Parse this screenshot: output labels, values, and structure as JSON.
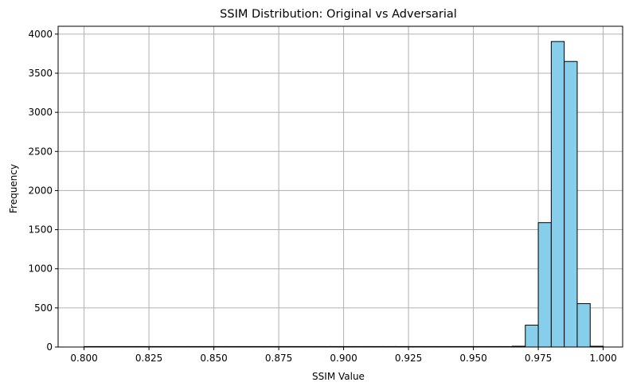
{
  "chart_data": {
    "type": "bar",
    "title": "SSIM Distribution: Original vs Adversarial",
    "xlabel": "SSIM Value",
    "ylabel": "Frequency",
    "xlim": [
      0.79,
      1.0075
    ],
    "ylim": [
      0,
      4100
    ],
    "grid": true,
    "bar_color": "#87CEEB",
    "edge_color": "#000000",
    "grid_color": "#b0b0b0",
    "x_ticks": [
      0.8,
      0.825,
      0.85,
      0.875,
      0.9,
      0.925,
      0.95,
      0.975,
      1.0
    ],
    "x_tick_labels": [
      "0.800",
      "0.825",
      "0.850",
      "0.875",
      "0.900",
      "0.925",
      "0.950",
      "0.975",
      "1.000"
    ],
    "y_ticks": [
      0,
      500,
      1000,
      1500,
      2000,
      2500,
      3000,
      3500,
      4000
    ],
    "y_tick_labels": [
      "0",
      "500",
      "1000",
      "1500",
      "2000",
      "2500",
      "3000",
      "3500",
      "4000"
    ],
    "bins": [
      {
        "x0": 0.8,
        "x1": 0.805,
        "value": 0
      },
      {
        "x0": 0.805,
        "x1": 0.81,
        "value": 0
      },
      {
        "x0": 0.81,
        "x1": 0.815,
        "value": 0
      },
      {
        "x0": 0.815,
        "x1": 0.82,
        "value": 0
      },
      {
        "x0": 0.82,
        "x1": 0.825,
        "value": 0
      },
      {
        "x0": 0.825,
        "x1": 0.83,
        "value": 0
      },
      {
        "x0": 0.83,
        "x1": 0.835,
        "value": 0
      },
      {
        "x0": 0.835,
        "x1": 0.84,
        "value": 0
      },
      {
        "x0": 0.84,
        "x1": 0.845,
        "value": 0
      },
      {
        "x0": 0.845,
        "x1": 0.85,
        "value": 0
      },
      {
        "x0": 0.85,
        "x1": 0.855,
        "value": 0
      },
      {
        "x0": 0.855,
        "x1": 0.86,
        "value": 0
      },
      {
        "x0": 0.86,
        "x1": 0.865,
        "value": 0
      },
      {
        "x0": 0.865,
        "x1": 0.87,
        "value": 0
      },
      {
        "x0": 0.87,
        "x1": 0.875,
        "value": 0
      },
      {
        "x0": 0.875,
        "x1": 0.88,
        "value": 0
      },
      {
        "x0": 0.88,
        "x1": 0.885,
        "value": 0
      },
      {
        "x0": 0.885,
        "x1": 0.89,
        "value": 0
      },
      {
        "x0": 0.89,
        "x1": 0.895,
        "value": 0
      },
      {
        "x0": 0.895,
        "x1": 0.9,
        "value": 0
      },
      {
        "x0": 0.9,
        "x1": 0.905,
        "value": 0
      },
      {
        "x0": 0.905,
        "x1": 0.91,
        "value": 0
      },
      {
        "x0": 0.91,
        "x1": 0.915,
        "value": 0
      },
      {
        "x0": 0.915,
        "x1": 0.92,
        "value": 0
      },
      {
        "x0": 0.92,
        "x1": 0.925,
        "value": 0
      },
      {
        "x0": 0.925,
        "x1": 0.93,
        "value": 0
      },
      {
        "x0": 0.93,
        "x1": 0.935,
        "value": 0
      },
      {
        "x0": 0.935,
        "x1": 0.94,
        "value": 0
      },
      {
        "x0": 0.94,
        "x1": 0.945,
        "value": 0
      },
      {
        "x0": 0.945,
        "x1": 0.95,
        "value": 0
      },
      {
        "x0": 0.95,
        "x1": 0.955,
        "value": 0
      },
      {
        "x0": 0.955,
        "x1": 0.96,
        "value": 0
      },
      {
        "x0": 0.96,
        "x1": 0.965,
        "value": 0
      },
      {
        "x0": 0.965,
        "x1": 0.97,
        "value": 10
      },
      {
        "x0": 0.97,
        "x1": 0.975,
        "value": 280
      },
      {
        "x0": 0.975,
        "x1": 0.98,
        "value": 1590
      },
      {
        "x0": 0.98,
        "x1": 0.985,
        "value": 3905
      },
      {
        "x0": 0.985,
        "x1": 0.99,
        "value": 3650
      },
      {
        "x0": 0.99,
        "x1": 0.995,
        "value": 555
      },
      {
        "x0": 0.995,
        "x1": 1.0,
        "value": 10
      }
    ]
  }
}
